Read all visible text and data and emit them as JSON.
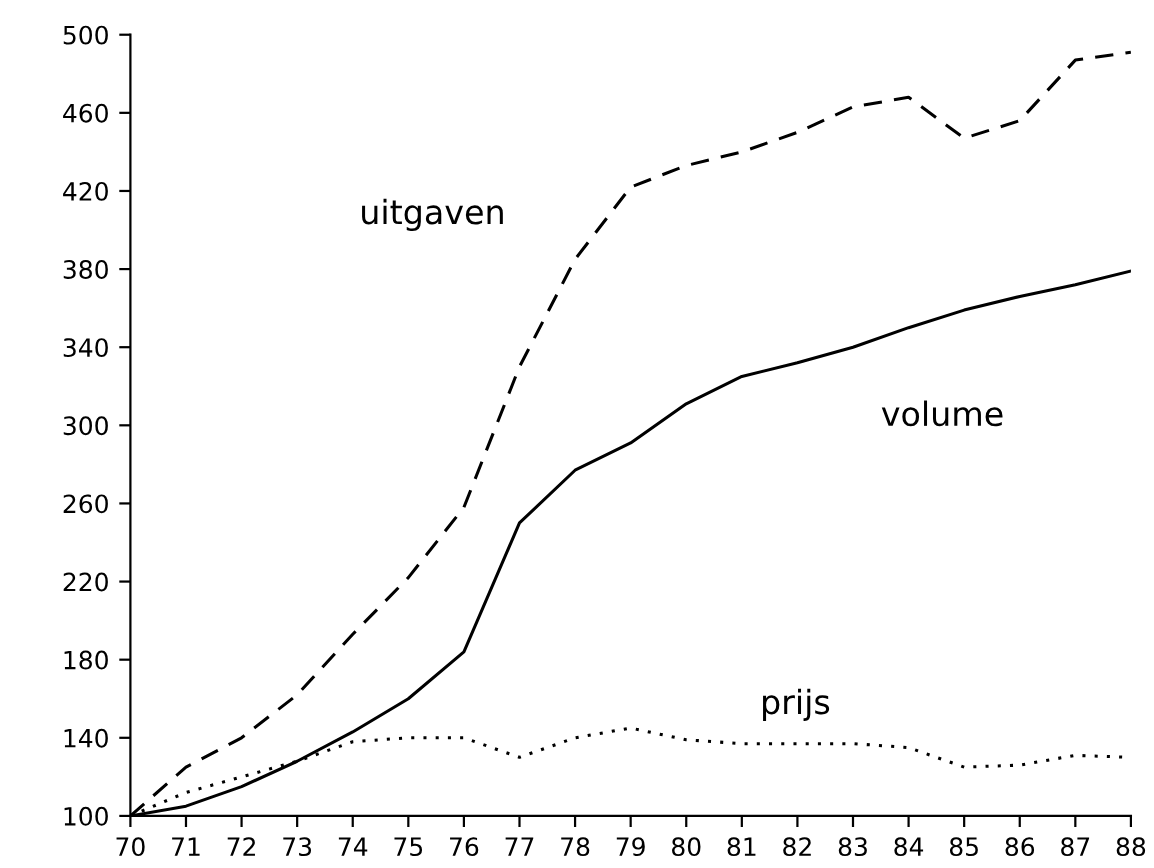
{
  "chart_data": {
    "type": "line",
    "x": [
      70,
      71,
      72,
      73,
      74,
      75,
      76,
      77,
      78,
      79,
      80,
      81,
      82,
      83,
      84,
      85,
      86,
      87,
      88
    ],
    "series": [
      {
        "name": "uitgaven",
        "color": "#000000",
        "line_style": "dashed",
        "values": [
          100,
          125,
          140,
          162,
          193,
          222,
          258,
          330,
          385,
          422,
          433,
          440,
          450,
          463,
          468,
          447,
          456,
          487,
          491
        ]
      },
      {
        "name": "volume",
        "color": "#000000",
        "line_style": "solid",
        "values": [
          100,
          105,
          115,
          128,
          143,
          160,
          184,
          250,
          277,
          291,
          311,
          325,
          332,
          340,
          350,
          359,
          366,
          372,
          379
        ]
      },
      {
        "name": "prijs",
        "color": "#000000",
        "line_style": "dotted",
        "values": [
          100,
          112,
          120,
          128,
          138,
          140,
          140,
          130,
          140,
          145,
          139,
          137,
          137,
          137,
          135,
          125,
          126,
          131,
          130
        ]
      }
    ],
    "xlim": [
      70,
      88
    ],
    "ylim": [
      100,
      500
    ],
    "xticks": [
      70,
      71,
      72,
      73,
      74,
      75,
      76,
      77,
      78,
      79,
      80,
      81,
      82,
      83,
      84,
      85,
      86,
      87,
      88
    ],
    "yticks": [
      100,
      140,
      180,
      220,
      260,
      300,
      340,
      380,
      420,
      460,
      500
    ],
    "grid": false,
    "legend": false
  }
}
